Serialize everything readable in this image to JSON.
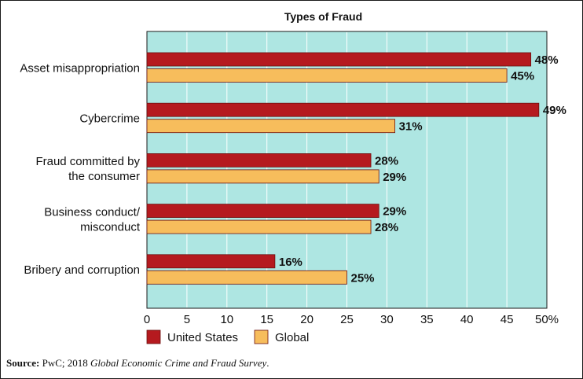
{
  "chart_data": {
    "type": "bar",
    "orientation": "horizontal",
    "title": "Types of Fraud",
    "categories": [
      [
        "Asset misappropriation"
      ],
      [
        "Cybercrime"
      ],
      [
        "Fraud committed by",
        "the consumer"
      ],
      [
        "Business conduct/",
        "misconduct"
      ],
      [
        "Bribery and corruption"
      ]
    ],
    "series": [
      {
        "name": "United States",
        "values": [
          48,
          49,
          28,
          29,
          16
        ],
        "labels": [
          "48%",
          "49%",
          "28%",
          "29%",
          "16%"
        ]
      },
      {
        "name": "Global",
        "values": [
          45,
          31,
          29,
          28,
          25
        ],
        "labels": [
          "45%",
          "31%",
          "29%",
          "28%",
          "25%"
        ]
      }
    ],
    "xlim": [
      0,
      50
    ],
    "ticks": [
      0,
      5,
      10,
      15,
      20,
      25,
      30,
      35,
      40,
      45,
      50
    ],
    "tick_labels": [
      "0",
      "5",
      "10",
      "15",
      "20",
      "25",
      "30",
      "35",
      "40",
      "45",
      "50%"
    ],
    "grid": true,
    "legend_position": "bottom-left"
  },
  "colors": {
    "united_states": "#b51a1f",
    "global": "#f7bd5c",
    "plot_background": "#aee6e2",
    "gridline": "#ffffff"
  },
  "source": {
    "label": "Source:",
    "publisher": "PwC; 2018",
    "title": "Global Economic Crime and Fraud Survey",
    "end": "."
  }
}
